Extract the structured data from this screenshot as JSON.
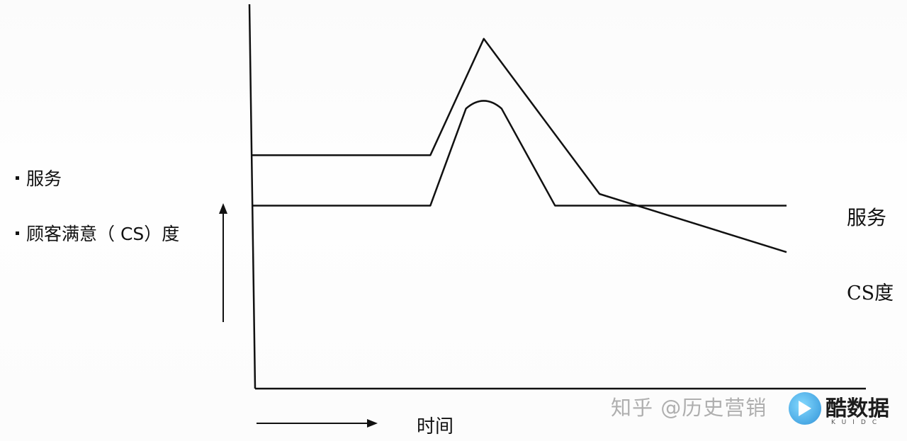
{
  "chart_data": {
    "type": "line",
    "x": [
      0,
      10,
      13,
      17,
      21,
      30
    ],
    "xlabel": "时间",
    "ylabel": [
      "服务",
      "顾客满意（ CS）度"
    ],
    "xlim": [
      0,
      30
    ],
    "ylim": [
      0,
      100
    ],
    "grid": false,
    "legend": "right",
    "series": [
      {
        "name": "服务",
        "points": [
          [
            0,
            60
          ],
          [
            10,
            60
          ],
          [
            13,
            90
          ],
          [
            19.5,
            50
          ],
          [
            30,
            35
          ]
        ]
      },
      {
        "name": "CS度",
        "points": [
          [
            0,
            47
          ],
          [
            10,
            47
          ],
          [
            12,
            72
          ],
          [
            13,
            76
          ],
          [
            14,
            72
          ],
          [
            17,
            47
          ],
          [
            30,
            47
          ]
        ]
      }
    ]
  },
  "legend_items": {
    "service": "服务",
    "cs": "顾客满意（ CS）度"
  },
  "series_labels": {
    "service": "服务",
    "cs": "CS度"
  },
  "watermark": "知乎 @历史营销",
  "logo": {
    "text": "酷数据",
    "sub": "KUIDC"
  },
  "colors": {
    "ink": "#111111",
    "logo_blue": "#2b9ae0"
  }
}
